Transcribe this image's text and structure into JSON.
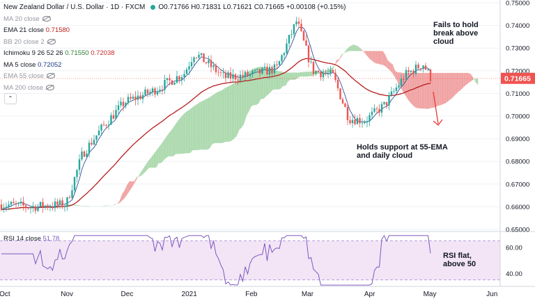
{
  "header": {
    "title": "New Zealand Dollar / U.S. Dollar · 1D · FXCM",
    "ohlc": "O0.71766 H0.71831 L0.71621 C0.71665 +0.00108 (+0.15%)"
  },
  "legend": [
    {
      "label": "MA 20 close",
      "value": "",
      "hidden": true
    },
    {
      "label": "EMA 21 close",
      "value": "0.71580",
      "hidden": false,
      "color": "#b71c1c"
    },
    {
      "label": "BB 20 close 2",
      "value": "",
      "hidden": true
    },
    {
      "label": "Ichimoku 9 26 52 26",
      "value": "0.71550",
      "value2": "0.72038",
      "hidden": false,
      "color": "#2e7d32",
      "color2": "#c62828"
    },
    {
      "label": "MA 5 close",
      "value": "0.72052",
      "hidden": false,
      "color": "#1e3a8a"
    },
    {
      "label": "EMA 55 close",
      "value": "",
      "hidden": true
    },
    {
      "label": "MA 200 close",
      "value": "",
      "hidden": true
    }
  ],
  "collapse_glyph": "⌃",
  "rsi": {
    "label": "RSI 14 close",
    "value": "51.78",
    "color": "#7e57c2"
  },
  "annotations": {
    "top": [
      "Fails to hold",
      "break above",
      "cloud"
    ],
    "mid": [
      "Holds support at 55-EMA",
      "and daily cloud"
    ],
    "rsi": [
      "RSI flat,",
      "above 50"
    ]
  },
  "price_axis": {
    "ticks": [
      "0.75000",
      "0.74000",
      "0.73000",
      "0.72000",
      "0.71000",
      "0.70000",
      "0.69000",
      "0.68000",
      "0.67000",
      "0.66000",
      "0.65000"
    ],
    "current": "0.71665"
  },
  "rsi_axis": {
    "ticks": [
      "60.00",
      "40.00"
    ]
  },
  "time_axis": [
    "Oct",
    "Nov",
    "Dec",
    "2021",
    "Feb",
    "Mar",
    "Apr",
    "May",
    "Jun"
  ],
  "colors": {
    "up": "#26a69a",
    "down": "#ef5350",
    "cloud_bull": "#a5d6a7",
    "cloud_bear": "#ef9a9a",
    "ema21": "#b71c1c",
    "ma5": "#1e3a8a",
    "rsi_band": "#f3e5f5",
    "rsi_line": "#7e57c2"
  },
  "chart_data": {
    "type": "candlestick",
    "symbol": "NZDUSD",
    "timeframe": "1D",
    "ylim": [
      0.65,
      0.75
    ],
    "close_path": [
      {
        "date": "2020-10-01",
        "close": 0.661
      },
      {
        "date": "2020-10-15",
        "close": 0.66
      },
      {
        "date": "2020-11-02",
        "close": 0.661
      },
      {
        "date": "2020-11-10",
        "close": 0.683
      },
      {
        "date": "2020-11-20",
        "close": 0.695
      },
      {
        "date": "2020-12-01",
        "close": 0.706
      },
      {
        "date": "2020-12-15",
        "close": 0.711
      },
      {
        "date": "2020-12-31",
        "close": 0.719
      },
      {
        "date": "2021-01-05",
        "close": 0.728
      },
      {
        "date": "2021-01-20",
        "close": 0.717
      },
      {
        "date": "2021-02-01",
        "close": 0.718
      },
      {
        "date": "2021-02-15",
        "close": 0.721
      },
      {
        "date": "2021-02-25",
        "close": 0.742
      },
      {
        "date": "2021-03-05",
        "close": 0.72
      },
      {
        "date": "2021-03-15",
        "close": 0.718
      },
      {
        "date": "2021-03-23",
        "close": 0.699
      },
      {
        "date": "2021-03-31",
        "close": 0.698
      },
      {
        "date": "2021-04-10",
        "close": 0.705
      },
      {
        "date": "2021-04-20",
        "close": 0.718
      },
      {
        "date": "2021-04-29",
        "close": 0.723
      },
      {
        "date": "2021-05-03",
        "close": 0.71665
      }
    ],
    "rsi_ylim": [
      30,
      70
    ],
    "rsi_last": 51.78
  }
}
